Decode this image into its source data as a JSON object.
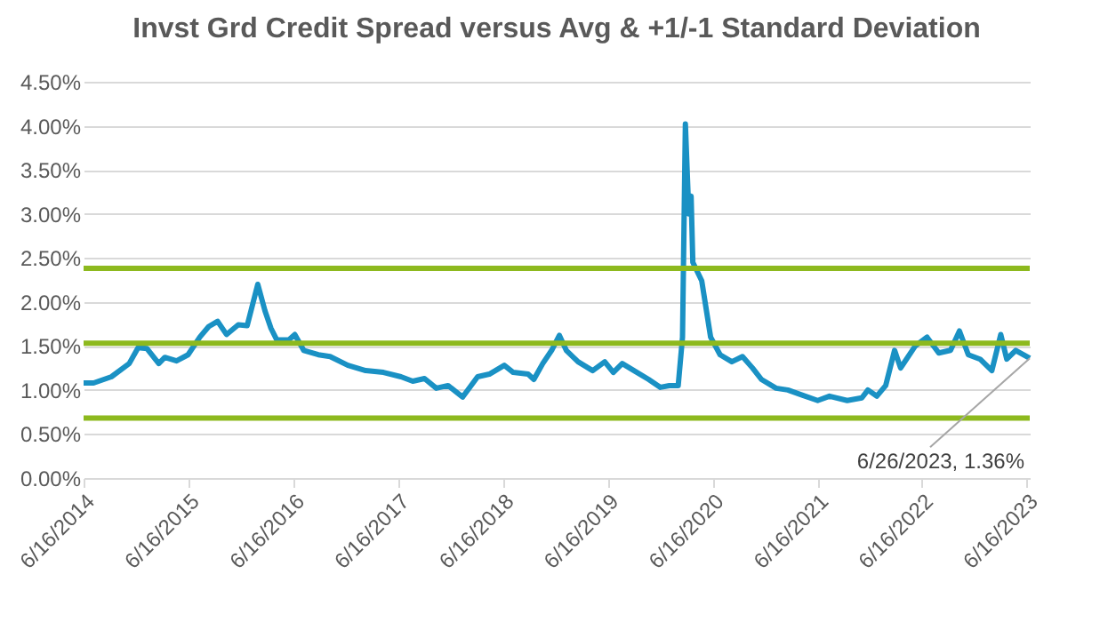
{
  "chart_data": {
    "type": "line",
    "title": "Invst Grd Credit Spread versus Avg & +1/-1 Standard Deviation",
    "x": [
      "2014-06-16",
      "2014-07-21",
      "2014-09-21",
      "2014-11-22",
      "2014-12-23",
      "2015-01-23",
      "2015-03-05",
      "2015-03-26",
      "2015-05-06",
      "2015-06-15",
      "2015-07-26",
      "2015-08-26",
      "2015-09-26",
      "2015-10-27",
      "2015-12-07",
      "2016-01-07",
      "2016-02-13",
      "2016-03-09",
      "2016-03-30",
      "2016-04-19",
      "2016-05-31",
      "2016-06-21",
      "2016-07-22",
      "2016-09-11",
      "2016-10-22",
      "2016-12-23",
      "2017-02-23",
      "2017-04-26",
      "2017-06-26",
      "2017-08-06",
      "2017-09-16",
      "2017-10-27",
      "2017-12-07",
      "2018-01-27",
      "2018-03-20",
      "2018-04-30",
      "2018-06-21",
      "2018-07-22",
      "2018-09-12",
      "2018-10-02",
      "2018-11-02",
      "2018-12-03",
      "2018-12-30",
      "2019-01-23",
      "2019-03-05",
      "2019-04-25",
      "2019-06-06",
      "2019-07-06",
      "2019-08-06",
      "2019-09-16",
      "2019-11-06",
      "2019-12-17",
      "2020-01-17",
      "2020-02-17",
      "2020-03-03",
      "2020-03-13",
      "2020-03-25",
      "2020-04-02",
      "2020-04-08",
      "2020-05-09",
      "2020-06-09",
      "2020-07-12",
      "2020-08-22",
      "2020-09-28",
      "2020-11-02",
      "2020-12-03",
      "2021-01-23",
      "2021-03-05",
      "2021-04-26",
      "2021-06-17",
      "2021-07-28",
      "2021-09-28",
      "2021-11-18",
      "2021-12-09",
      "2022-01-09",
      "2022-02-09",
      "2022-03-12",
      "2022-04-02",
      "2022-05-23",
      "2022-07-03",
      "2022-08-13",
      "2022-09-23",
      "2022-10-24",
      "2022-11-24",
      "2023-01-04",
      "2023-02-14",
      "2023-03-17",
      "2023-04-07",
      "2023-05-08",
      "2023-06-26"
    ],
    "series": [
      {
        "color": "#1a91c4",
        "values": [
          1.08,
          1.08,
          1.15,
          1.3,
          1.48,
          1.47,
          1.3,
          1.37,
          1.33,
          1.4,
          1.6,
          1.72,
          1.78,
          1.63,
          1.74,
          1.73,
          2.2,
          1.9,
          1.7,
          1.57,
          1.57,
          1.63,
          1.45,
          1.4,
          1.38,
          1.28,
          1.22,
          1.2,
          1.15,
          1.1,
          1.13,
          1.02,
          1.05,
          0.92,
          1.15,
          1.18,
          1.28,
          1.2,
          1.18,
          1.12,
          1.3,
          1.45,
          1.62,
          1.45,
          1.32,
          1.22,
          1.32,
          1.2,
          1.3,
          1.22,
          1.12,
          1.03,
          1.05,
          1.05,
          1.6,
          4.02,
          3.0,
          3.2,
          2.45,
          2.24,
          1.6,
          1.4,
          1.32,
          1.38,
          1.25,
          1.12,
          1.02,
          1.0,
          0.94,
          0.88,
          0.93,
          0.88,
          0.91,
          1.0,
          0.93,
          1.05,
          1.45,
          1.25,
          1.5,
          1.6,
          1.42,
          1.45,
          1.67,
          1.4,
          1.35,
          1.22,
          1.63,
          1.35,
          1.45,
          1.36
        ]
      }
    ],
    "xlim": [
      "2014-06-16",
      "2023-06-26"
    ],
    "xticks": [
      {
        "value": "2014-06-16",
        "label": "6/16/2014"
      },
      {
        "value": "2015-06-16",
        "label": "6/16/2015"
      },
      {
        "value": "2016-06-16",
        "label": "6/16/2016"
      },
      {
        "value": "2017-06-16",
        "label": "6/16/2017"
      },
      {
        "value": "2018-06-16",
        "label": "6/16/2018"
      },
      {
        "value": "2019-06-16",
        "label": "6/16/2019"
      },
      {
        "value": "2020-06-16",
        "label": "6/16/2020"
      },
      {
        "value": "2021-06-16",
        "label": "6/16/2021"
      },
      {
        "value": "2022-06-16",
        "label": "6/16/2022"
      },
      {
        "value": "2023-06-16",
        "label": "6/16/2023"
      }
    ],
    "ylim": [
      0,
      4.5
    ],
    "yticks": [
      {
        "value": 0,
        "label": "0.00%"
      },
      {
        "value": 0.5,
        "label": "0.50%"
      },
      {
        "value": 1,
        "label": "1.00%"
      },
      {
        "value": 1.5,
        "label": "1.50%"
      },
      {
        "value": 2,
        "label": "2.00%"
      },
      {
        "value": 2.5,
        "label": "2.50%"
      },
      {
        "value": 3,
        "label": "3.00%"
      },
      {
        "value": 3.5,
        "label": "3.50%"
      },
      {
        "value": 4,
        "label": "4.00%"
      },
      {
        "value": 4.5,
        "label": "4.50%"
      }
    ],
    "grid": "y",
    "ref_lines": [
      {
        "axis": "y",
        "value": 2.38,
        "color": "#8db91e"
      },
      {
        "axis": "y",
        "value": 1.53,
        "color": "#8db91e"
      },
      {
        "axis": "y",
        "value": 0.68,
        "color": "#8db91e"
      }
    ],
    "annotations": [
      {
        "text": "6/26/2023, 1.36%",
        "x": "2023-06-26",
        "y": 1.36
      }
    ]
  }
}
